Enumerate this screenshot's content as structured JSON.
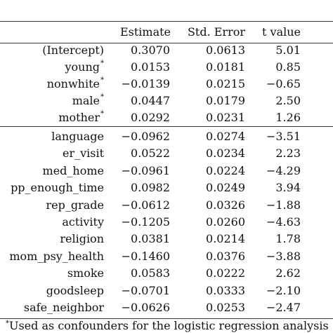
{
  "table": {
    "headers": {
      "estimate": "Estimate",
      "std_error": "Std. Error",
      "t_value": "t value"
    },
    "confounder_rows": [
      {
        "label": "(Intercept)",
        "starred": false,
        "estimate": "0.3070",
        "std_error": "0.0613",
        "t_value": "5.01"
      },
      {
        "label": "young",
        "starred": true,
        "estimate": "0.0153",
        "std_error": "0.0181",
        "t_value": "0.85"
      },
      {
        "label": "nonwhite",
        "starred": true,
        "estimate": "−0.0139",
        "std_error": "0.0215",
        "t_value": "−0.65"
      },
      {
        "label": "male",
        "starred": true,
        "estimate": "0.0447",
        "std_error": "0.0179",
        "t_value": "2.50"
      },
      {
        "label": "mother",
        "starred": true,
        "estimate": "0.0292",
        "std_error": "0.0231",
        "t_value": "1.26"
      }
    ],
    "other_rows": [
      {
        "label": "language",
        "starred": false,
        "estimate": "−0.0962",
        "std_error": "0.0274",
        "t_value": "−3.51"
      },
      {
        "label": "er_visit",
        "starred": false,
        "estimate": "0.0522",
        "std_error": "0.0234",
        "t_value": "2.23"
      },
      {
        "label": "med_home",
        "starred": false,
        "estimate": "−0.0961",
        "std_error": "0.0224",
        "t_value": "−4.29"
      },
      {
        "label": "pp_enough_time",
        "starred": false,
        "estimate": "0.0982",
        "std_error": "0.0249",
        "t_value": "3.94"
      },
      {
        "label": "rep_grade",
        "starred": false,
        "estimate": "−0.0612",
        "std_error": "0.0326",
        "t_value": "−1.88"
      },
      {
        "label": "activity",
        "starred": false,
        "estimate": "−0.1205",
        "std_error": "0.0260",
        "t_value": "−4.63"
      },
      {
        "label": "religion",
        "starred": false,
        "estimate": "0.0381",
        "std_error": "0.0214",
        "t_value": "1.78"
      },
      {
        "label": "mom_psy_health",
        "starred": false,
        "estimate": "−0.1460",
        "std_error": "0.0376",
        "t_value": "−3.88"
      },
      {
        "label": "smoke",
        "starred": false,
        "estimate": "0.0583",
        "std_error": "0.0222",
        "t_value": "2.62"
      },
      {
        "label": "goodsleep",
        "starred": false,
        "estimate": "−0.0701",
        "std_error": "0.0333",
        "t_value": "−2.10"
      },
      {
        "label": "safe_neighbor",
        "starred": false,
        "estimate": "−0.0626",
        "std_error": "0.0253",
        "t_value": "−2.47"
      }
    ],
    "star_symbol": "*"
  },
  "footnote": {
    "marker": "*",
    "text": "Used as confounders for the logistic regression analysis"
  }
}
